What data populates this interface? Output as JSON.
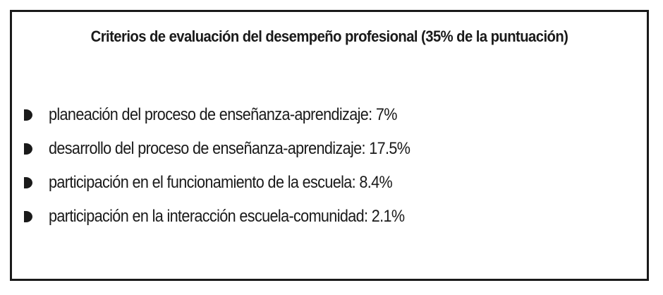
{
  "title": "Criterios de evaluación del desempeño profesional (35% de la puntuación)",
  "items": [
    {
      "icon": "half-circle-bullet-icon",
      "text": "planeación del proceso de enseñanza-aprendizaje: 7%"
    },
    {
      "icon": "half-circle-bullet-icon",
      "text": "desarrollo del proceso de enseñanza-aprendizaje: 17.5%"
    },
    {
      "icon": "half-circle-bullet-icon",
      "text": "participación en el funcionamiento de la escuela: 8.4%"
    },
    {
      "icon": "half-circle-bullet-icon",
      "text": "participación en la interacción escuela-comunidad: 2.1%"
    }
  ],
  "colors": {
    "text": "#1a1a1a",
    "border": "#1a1a1a",
    "background": "#ffffff"
  }
}
